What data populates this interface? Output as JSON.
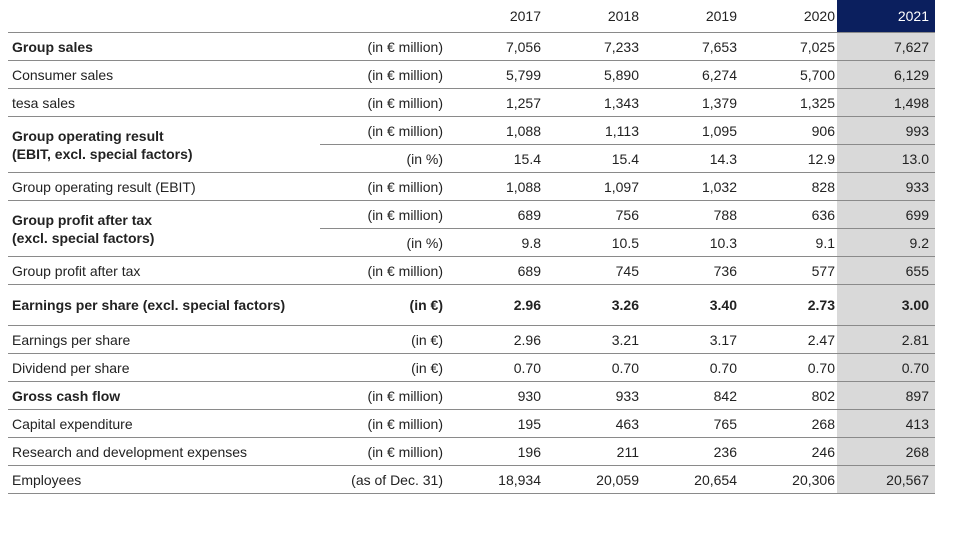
{
  "table": {
    "header": [
      "2017",
      "2018",
      "2019",
      "2020",
      "2021"
    ],
    "rows": [
      {
        "label": "Group sales",
        "lines": [
          {
            "unit": "(in € million)",
            "values": [
              "7,056",
              "7,233",
              "7,653",
              "7,025",
              "7,627"
            ]
          }
        ]
      },
      {
        "label": "Consumer sales",
        "lines": [
          {
            "unit": "(in € million)",
            "values": [
              "5,799",
              "5,890",
              "6,274",
              "5,700",
              "6,129"
            ]
          }
        ]
      },
      {
        "label": "tesa sales",
        "lines": [
          {
            "unit": "(in € million)",
            "values": [
              "1,257",
              "1,343",
              "1,379",
              "1,325",
              "1,498"
            ]
          }
        ]
      },
      {
        "label": "Group operating result\n(EBIT, excl. special factors)",
        "lines": [
          {
            "unit": "(in € million)",
            "values": [
              "1,088",
              "1,113",
              "1,095",
              "906",
              "993"
            ]
          },
          {
            "unit": "(in %)",
            "values": [
              "15.4",
              "15.4",
              "14.3",
              "12.9",
              "13.0"
            ]
          }
        ]
      },
      {
        "label": "Group operating result (EBIT)",
        "lines": [
          {
            "unit": "(in € million)",
            "values": [
              "1,088",
              "1,097",
              "1,032",
              "828",
              "933"
            ]
          }
        ]
      },
      {
        "label": "Group profit after tax\n(excl. special factors)",
        "lines": [
          {
            "unit": "(in € million)",
            "values": [
              "689",
              "756",
              "788",
              "636",
              "699"
            ]
          },
          {
            "unit": "(in %)",
            "values": [
              "9.8",
              "10.5",
              "10.3",
              "9.1",
              "9.2"
            ]
          }
        ]
      },
      {
        "label": "Group profit after tax",
        "lines": [
          {
            "unit": "(in € million)",
            "values": [
              "689",
              "745",
              "736",
              "577",
              "655"
            ]
          }
        ]
      },
      {
        "label": "Earnings per share (excl. special factors)",
        "lines": [
          {
            "unit": "(in €)",
            "values": [
              "2.96",
              "3.26",
              "3.40",
              "2.73",
              "3.00"
            ]
          }
        ]
      },
      {
        "label": "Earnings per share",
        "lines": [
          {
            "unit": "(in €)",
            "values": [
              "2.96",
              "3.21",
              "3.17",
              "2.47",
              "2.81"
            ]
          }
        ]
      },
      {
        "label": "Dividend per share",
        "lines": [
          {
            "unit": "(in €)",
            "values": [
              "0.70",
              "0.70",
              "0.70",
              "0.70",
              "0.70"
            ]
          }
        ]
      },
      {
        "label": "Gross cash flow",
        "lines": [
          {
            "unit": "(in € million)",
            "values": [
              "930",
              "933",
              "842",
              "802",
              "897"
            ]
          }
        ]
      },
      {
        "label": "Capital expenditure",
        "lines": [
          {
            "unit": "(in € million)",
            "values": [
              "195",
              "463",
              "765",
              "268",
              "413"
            ]
          }
        ]
      },
      {
        "label": "Research and development expenses",
        "lines": [
          {
            "unit": "(in € million)",
            "values": [
              "196",
              "211",
              "236",
              "246",
              "268"
            ]
          }
        ]
      },
      {
        "label": "Employees",
        "lines": [
          {
            "unit": "(as of Dec. 31)",
            "values": [
              "18,934",
              "20,059",
              "20,654",
              "20,306",
              "20,567"
            ]
          }
        ]
      }
    ]
  }
}
